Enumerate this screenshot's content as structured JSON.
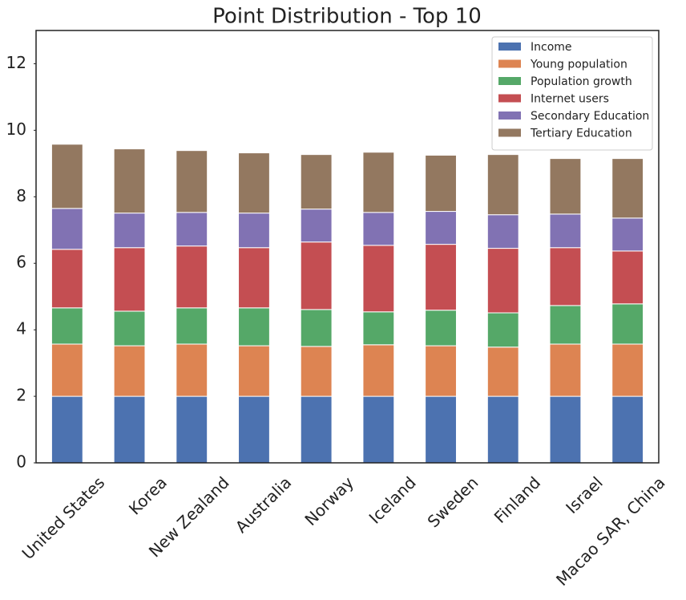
{
  "chart_data": {
    "type": "stacked_bar",
    "title": "Point Distribution - Top 10",
    "categories": [
      "United States",
      "Korea",
      "New Zealand",
      "Australia",
      "Norway",
      "Iceland",
      "Sweden",
      "Finland",
      "Israel",
      "Macao SAR, China"
    ],
    "series": [
      {
        "name": "Income",
        "color": "#4c72b0",
        "values": [
          2.0,
          2.0,
          2.0,
          2.0,
          2.0,
          2.0,
          2.0,
          2.0,
          2.0,
          2.0
        ]
      },
      {
        "name": "Young population",
        "color": "#dd8452",
        "values": [
          1.57,
          1.52,
          1.57,
          1.52,
          1.5,
          1.55,
          1.52,
          1.48,
          1.57,
          1.57
        ]
      },
      {
        "name": "Population growth",
        "color": "#55a868",
        "values": [
          1.09,
          1.04,
          1.09,
          1.14,
          1.11,
          0.99,
          1.07,
          1.03,
          1.16,
          1.21
        ]
      },
      {
        "name": "Internet users",
        "color": "#c44e52",
        "values": [
          1.76,
          1.91,
          1.86,
          1.81,
          2.03,
          2.0,
          1.98,
          1.94,
          1.74,
          1.59
        ]
      },
      {
        "name": "Secondary Education",
        "color": "#8172b3",
        "values": [
          1.23,
          1.04,
          1.01,
          1.04,
          0.99,
          0.99,
          0.99,
          1.01,
          1.01,
          0.99
        ]
      },
      {
        "name": "Tertiary Education",
        "color": "#937860",
        "values": [
          1.93,
          1.93,
          1.86,
          1.81,
          1.64,
          1.81,
          1.69,
          1.81,
          1.67,
          1.79
        ]
      }
    ],
    "ylim": [
      0,
      13
    ],
    "yticks": [
      0,
      2,
      4,
      6,
      8,
      10,
      12
    ],
    "legend": "upper right",
    "grid": false
  }
}
